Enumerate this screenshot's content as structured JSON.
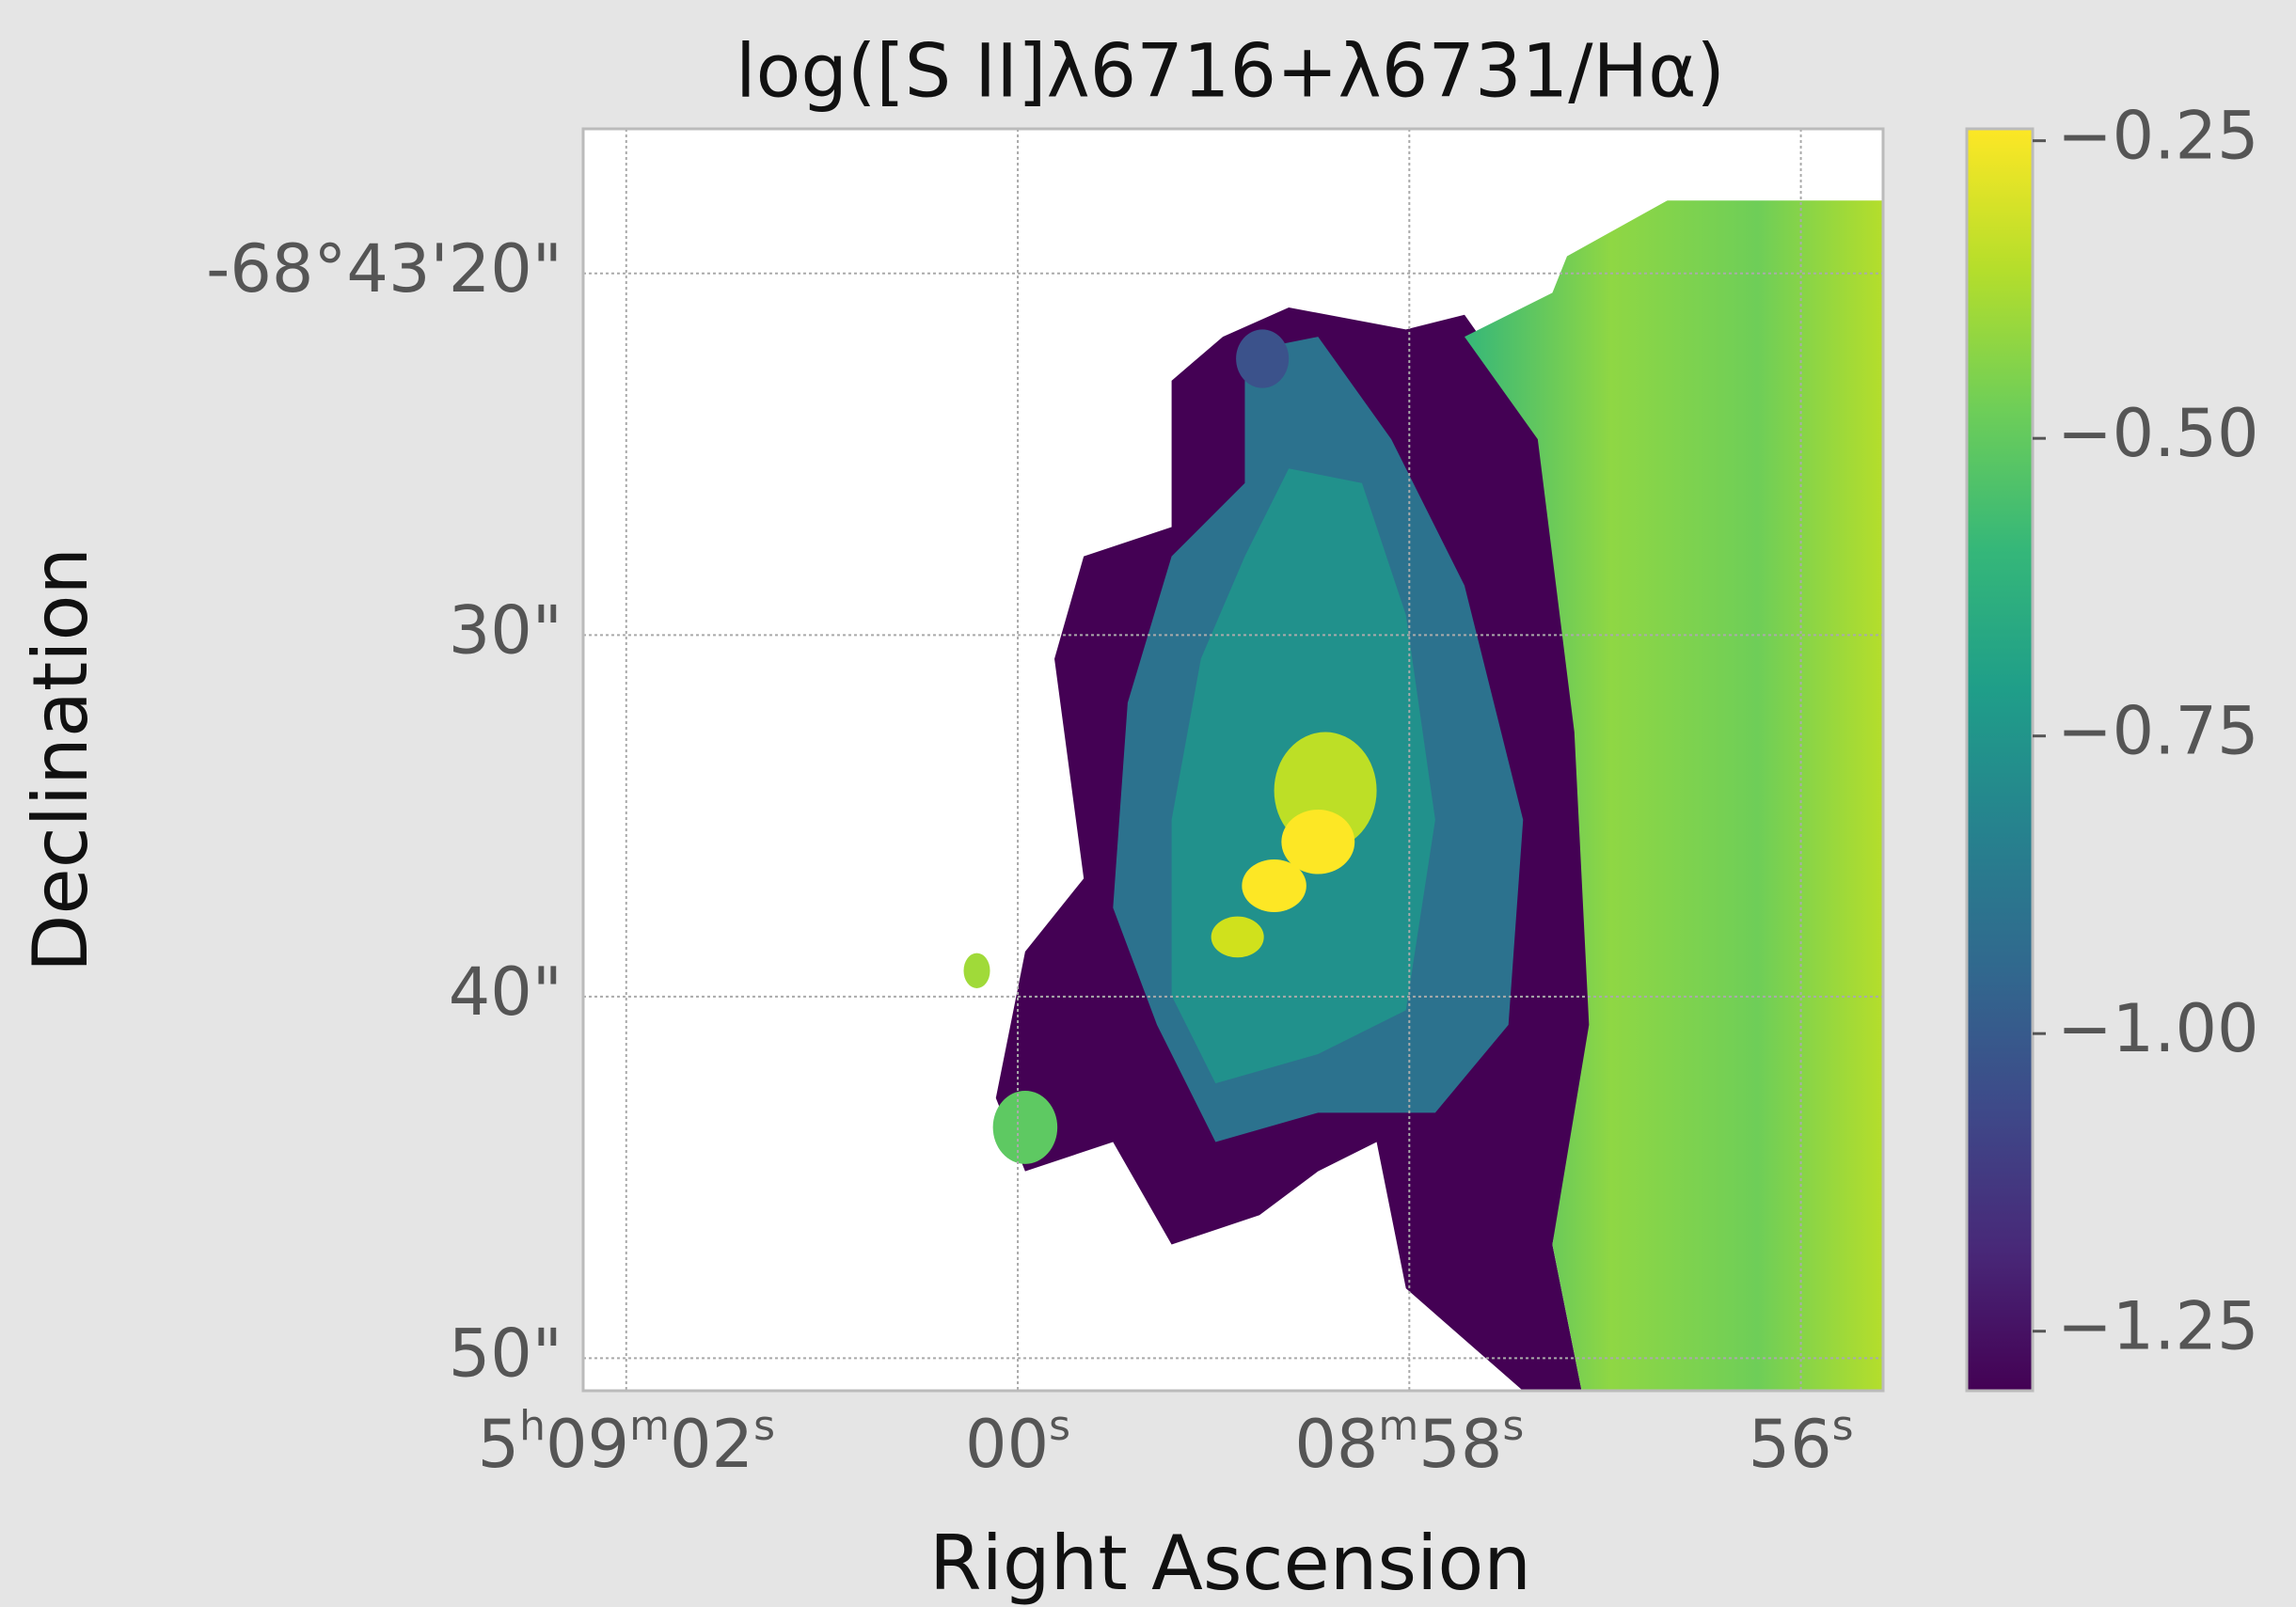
{
  "chart_data": {
    "type": "image",
    "title": "log([S II]λ6716+λ6731/Hα)",
    "x_label": "Right Ascension",
    "y_label": "Declination",
    "xlim": [
      62.22,
      55.58
    ],
    "xticks": [
      {
        "value": 62,
        "label": "5h09m02s"
      },
      {
        "value": 60,
        "label": "00s"
      },
      {
        "value": 58,
        "label": "08m58s"
      },
      {
        "value": 56,
        "label": "56s"
      }
    ],
    "ylim": [
      16,
      50.9
    ],
    "yticks": [
      {
        "value": 20,
        "label": "-68°43'20\""
      },
      {
        "value": 30,
        "label": "30\""
      },
      {
        "value": 40,
        "label": "40\""
      },
      {
        "value": 50,
        "label": "50\""
      }
    ],
    "grid": true,
    "colormap": "viridis",
    "clim": [
      -1.3,
      -0.24
    ],
    "colorbar_ticks": [
      {
        "value": -0.25,
        "label": "−0.25"
      },
      {
        "value": -0.5,
        "label": "−0.50"
      },
      {
        "value": -0.75,
        "label": "−0.75"
      },
      {
        "value": -1.0,
        "label": "−1.00"
      },
      {
        "value": -1.25,
        "label": "−1.25"
      }
    ]
  }
}
